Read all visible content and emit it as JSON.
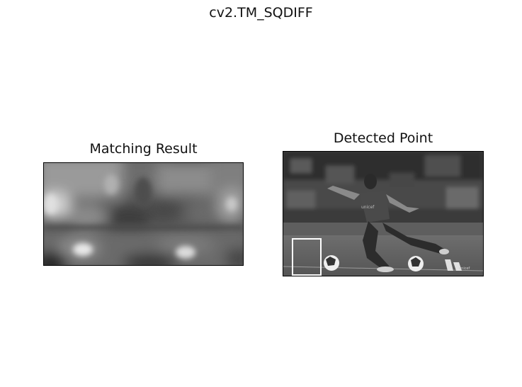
{
  "figure": {
    "suptitle": "cv2.TM_SQDIFF"
  },
  "chart_data": [
    {
      "type": "heatmap",
      "title": "Matching Result",
      "colormap": "gray",
      "axis": "off",
      "grid": false
    },
    {
      "type": "image",
      "title": "Detected Point",
      "colormap": "gray",
      "axis": "off",
      "grid": false,
      "image_text": "unicef",
      "annotation": "white rectangle marking the detected template location (bottom-left)"
    }
  ]
}
